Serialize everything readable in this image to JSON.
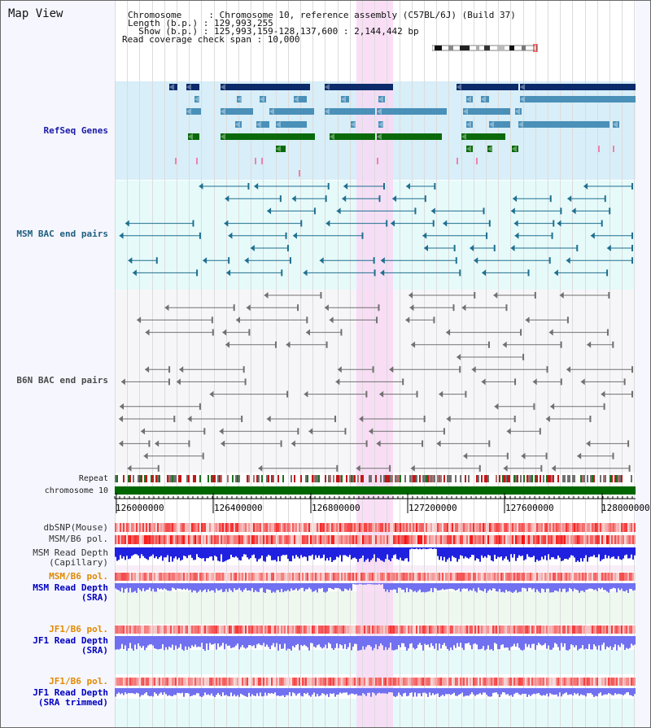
{
  "header": {
    "title": "Map View",
    "chromosome_label": "Chromosome     : Chromosome 10, reference assembly (C57BL/6J) (Build 37)",
    "length_label": "Length (b.p.) : 129,993,255",
    "show_label": "  Show (b.p.) : 125,993,159-128,137,600 : 2,144,442 bp",
    "coverage_label": "Read coverage check span : 10,000"
  },
  "tracks": {
    "refseq": "RefSeq Genes",
    "msm_bac": "MSM BAC end pairs",
    "b6n_bac": "B6N BAC end pairs",
    "repeat": "Repeat",
    "chromosome": "chromosome 10",
    "dbsnp": "dbSNP(Mouse)",
    "msm_pol1": "MSM/B6 pol.",
    "msm_depth_cap_1": "MSM Read Depth",
    "msm_depth_cap_2": "(Capillary)",
    "msm_pol2": "MSM/B6 pol.",
    "msm_depth_sra_1": "MSM Read Depth",
    "msm_depth_sra_2": "(SRA)",
    "jf1_pol1": "JF1/B6 pol.",
    "jf1_depth_sra_1": "JF1 Read Depth",
    "jf1_depth_sra_2": "(SRA)",
    "jf1_pol2": "JF1/B6 pol.",
    "jf1_depth_trim_1": "JF1 Read Depth",
    "jf1_depth_trim_2": "(SRA trimmed)"
  },
  "axis": {
    "ticks": [
      "126000000",
      "126400000",
      "126800000",
      "127200000",
      "127600000",
      "128000000"
    ]
  },
  "colors": {
    "refseq_bg": "#d8eef8",
    "bac_bg": "#e6f8f8",
    "selection": "#f8d8f4",
    "navy": "#0a2a6a",
    "steel": "#4a90b8",
    "green": "#0a6a0a",
    "pink": "#f080b0",
    "teal": "#1f6f8f",
    "gray": "#707070",
    "chrom": "#006600",
    "snp": "#f07070",
    "depth": "#2020e0",
    "depth_light": "#7070f0"
  }
}
